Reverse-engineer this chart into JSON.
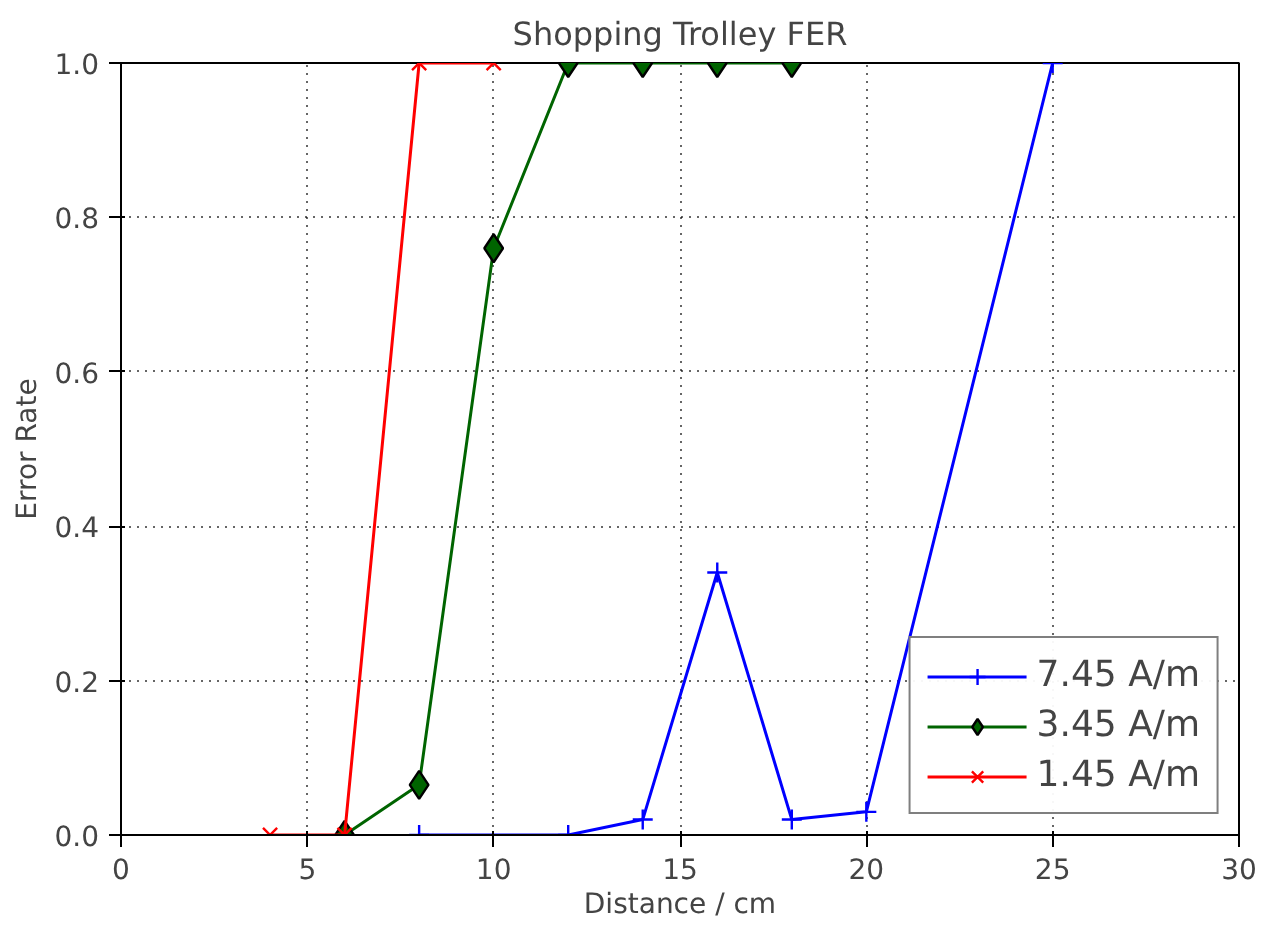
{
  "chart_data": {
    "type": "line",
    "title": "Shopping Trolley FER",
    "xlabel": "Distance / cm",
    "ylabel": "Error Rate",
    "xlim": [
      0,
      30
    ],
    "xticks": [
      0,
      5,
      10,
      15,
      20,
      25,
      30
    ],
    "ylim": [
      0,
      1.0
    ],
    "yticks": [
      {
        "value": 0,
        "label": "0.0"
      },
      {
        "value": 0.2,
        "label": "0.2"
      },
      {
        "value": 0.4,
        "label": "0.4"
      },
      {
        "value": 0.6,
        "label": "0.6"
      },
      {
        "value": 0.8,
        "label": "0.8"
      },
      {
        "value": 1.0,
        "label": "1.0"
      }
    ],
    "grid": true,
    "legend": "bottom right",
    "series": [
      {
        "name": "7.45 A/m",
        "color": "#0000ff",
        "marker": "cross",
        "x": [
          8,
          12,
          14,
          16,
          18,
          20,
          25
        ],
        "values": [
          0,
          0,
          0.02,
          0.34,
          0.02,
          0.03,
          1.0
        ]
      },
      {
        "name": "3.45 A/m",
        "color": "#006400",
        "marker": "diamond",
        "x": [
          6,
          8,
          10,
          12,
          14,
          16,
          18
        ],
        "values": [
          0,
          0.065,
          0.76,
          1.0,
          1.0,
          1.0,
          1.0
        ]
      },
      {
        "name": "1.45 A/m",
        "color": "#ff0000",
        "marker": "x",
        "x": [
          4,
          6,
          8,
          10
        ],
        "values": [
          0,
          0,
          1.0,
          1.0
        ]
      }
    ]
  }
}
